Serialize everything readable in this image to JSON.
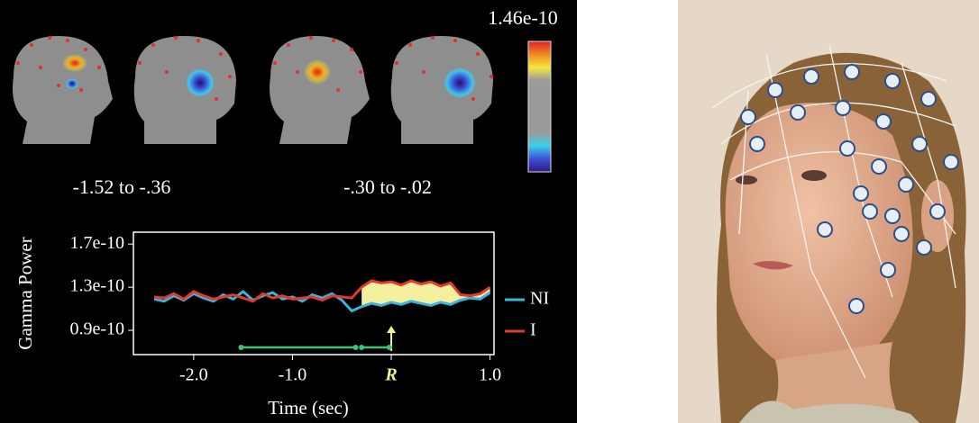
{
  "chart_data": {
    "type": "line",
    "y_label": "Gamma Power",
    "x_label": "Time (sec)",
    "colorbar_max": 1.46e-10,
    "intervals": [
      {
        "start": -1.52,
        "end": -0.36,
        "label": "-1.52 to -.36"
      },
      {
        "start": -0.3,
        "end": -0.02,
        "label": "-.30 to -.02"
      }
    ],
    "x": [
      -2.4,
      -2.3,
      -2.2,
      -2.1,
      -2.0,
      -1.9,
      -1.8,
      -1.7,
      -1.6,
      -1.5,
      -1.4,
      -1.3,
      -1.2,
      -1.1,
      -1.0,
      -0.9,
      -0.8,
      -0.7,
      -0.6,
      -0.5,
      -0.4,
      -0.3,
      -0.2,
      -0.1,
      0.0,
      0.1,
      0.2,
      0.3,
      0.4,
      0.5,
      0.6,
      0.7,
      0.8,
      0.9,
      1.0
    ],
    "series": [
      {
        "name": "NI",
        "color": "#3ab4dc",
        "values": [
          1.19e-10,
          1.17e-10,
          1.22e-10,
          1.18e-10,
          1.24e-10,
          1.2e-10,
          1.17e-10,
          1.23e-10,
          1.19e-10,
          1.26e-10,
          1.18e-10,
          1.22e-10,
          1.25e-10,
          1.19e-10,
          1.21e-10,
          1.17e-10,
          1.23e-10,
          1.2e-10,
          1.24e-10,
          1.18e-10,
          1.08e-10,
          1.12e-10,
          1.15e-10,
          1.13e-10,
          1.16e-10,
          1.14e-10,
          1.17e-10,
          1.15e-10,
          1.13e-10,
          1.16e-10,
          1.14e-10,
          1.18e-10,
          1.2e-10,
          1.19e-10,
          1.25e-10
        ]
      },
      {
        "name": "I",
        "color": "#e23a2c",
        "values": [
          1.21e-10,
          1.2e-10,
          1.24e-10,
          1.19e-10,
          1.26e-10,
          1.22e-10,
          1.19e-10,
          1.21e-10,
          1.23e-10,
          1.2e-10,
          1.17e-10,
          1.24e-10,
          1.2e-10,
          1.22e-10,
          1.19e-10,
          1.2e-10,
          1.21e-10,
          1.18e-10,
          1.22e-10,
          1.21e-10,
          1.2e-10,
          1.3e-10,
          1.36e-10,
          1.34e-10,
          1.35e-10,
          1.32e-10,
          1.36e-10,
          1.33e-10,
          1.35e-10,
          1.31e-10,
          1.34e-10,
          1.23e-10,
          1.22e-10,
          1.24e-10,
          1.3e-10
        ]
      }
    ],
    "xlim": [
      -2.61,
      1.04
    ],
    "ylim": [
      6.75e-11,
      1.81e-10
    ],
    "xticks": [
      {
        "value": -2.0,
        "label": "-2.0"
      },
      {
        "value": -1.0,
        "label": "-1.0"
      },
      {
        "value": 0,
        "label": "R"
      },
      {
        "value": 1.0,
        "label": "1.0"
      }
    ],
    "yticks": [
      {
        "value": 9e-11,
        "label": "0.9e-10"
      },
      1.3e-10,
      1.7e-10
    ]
  }
}
